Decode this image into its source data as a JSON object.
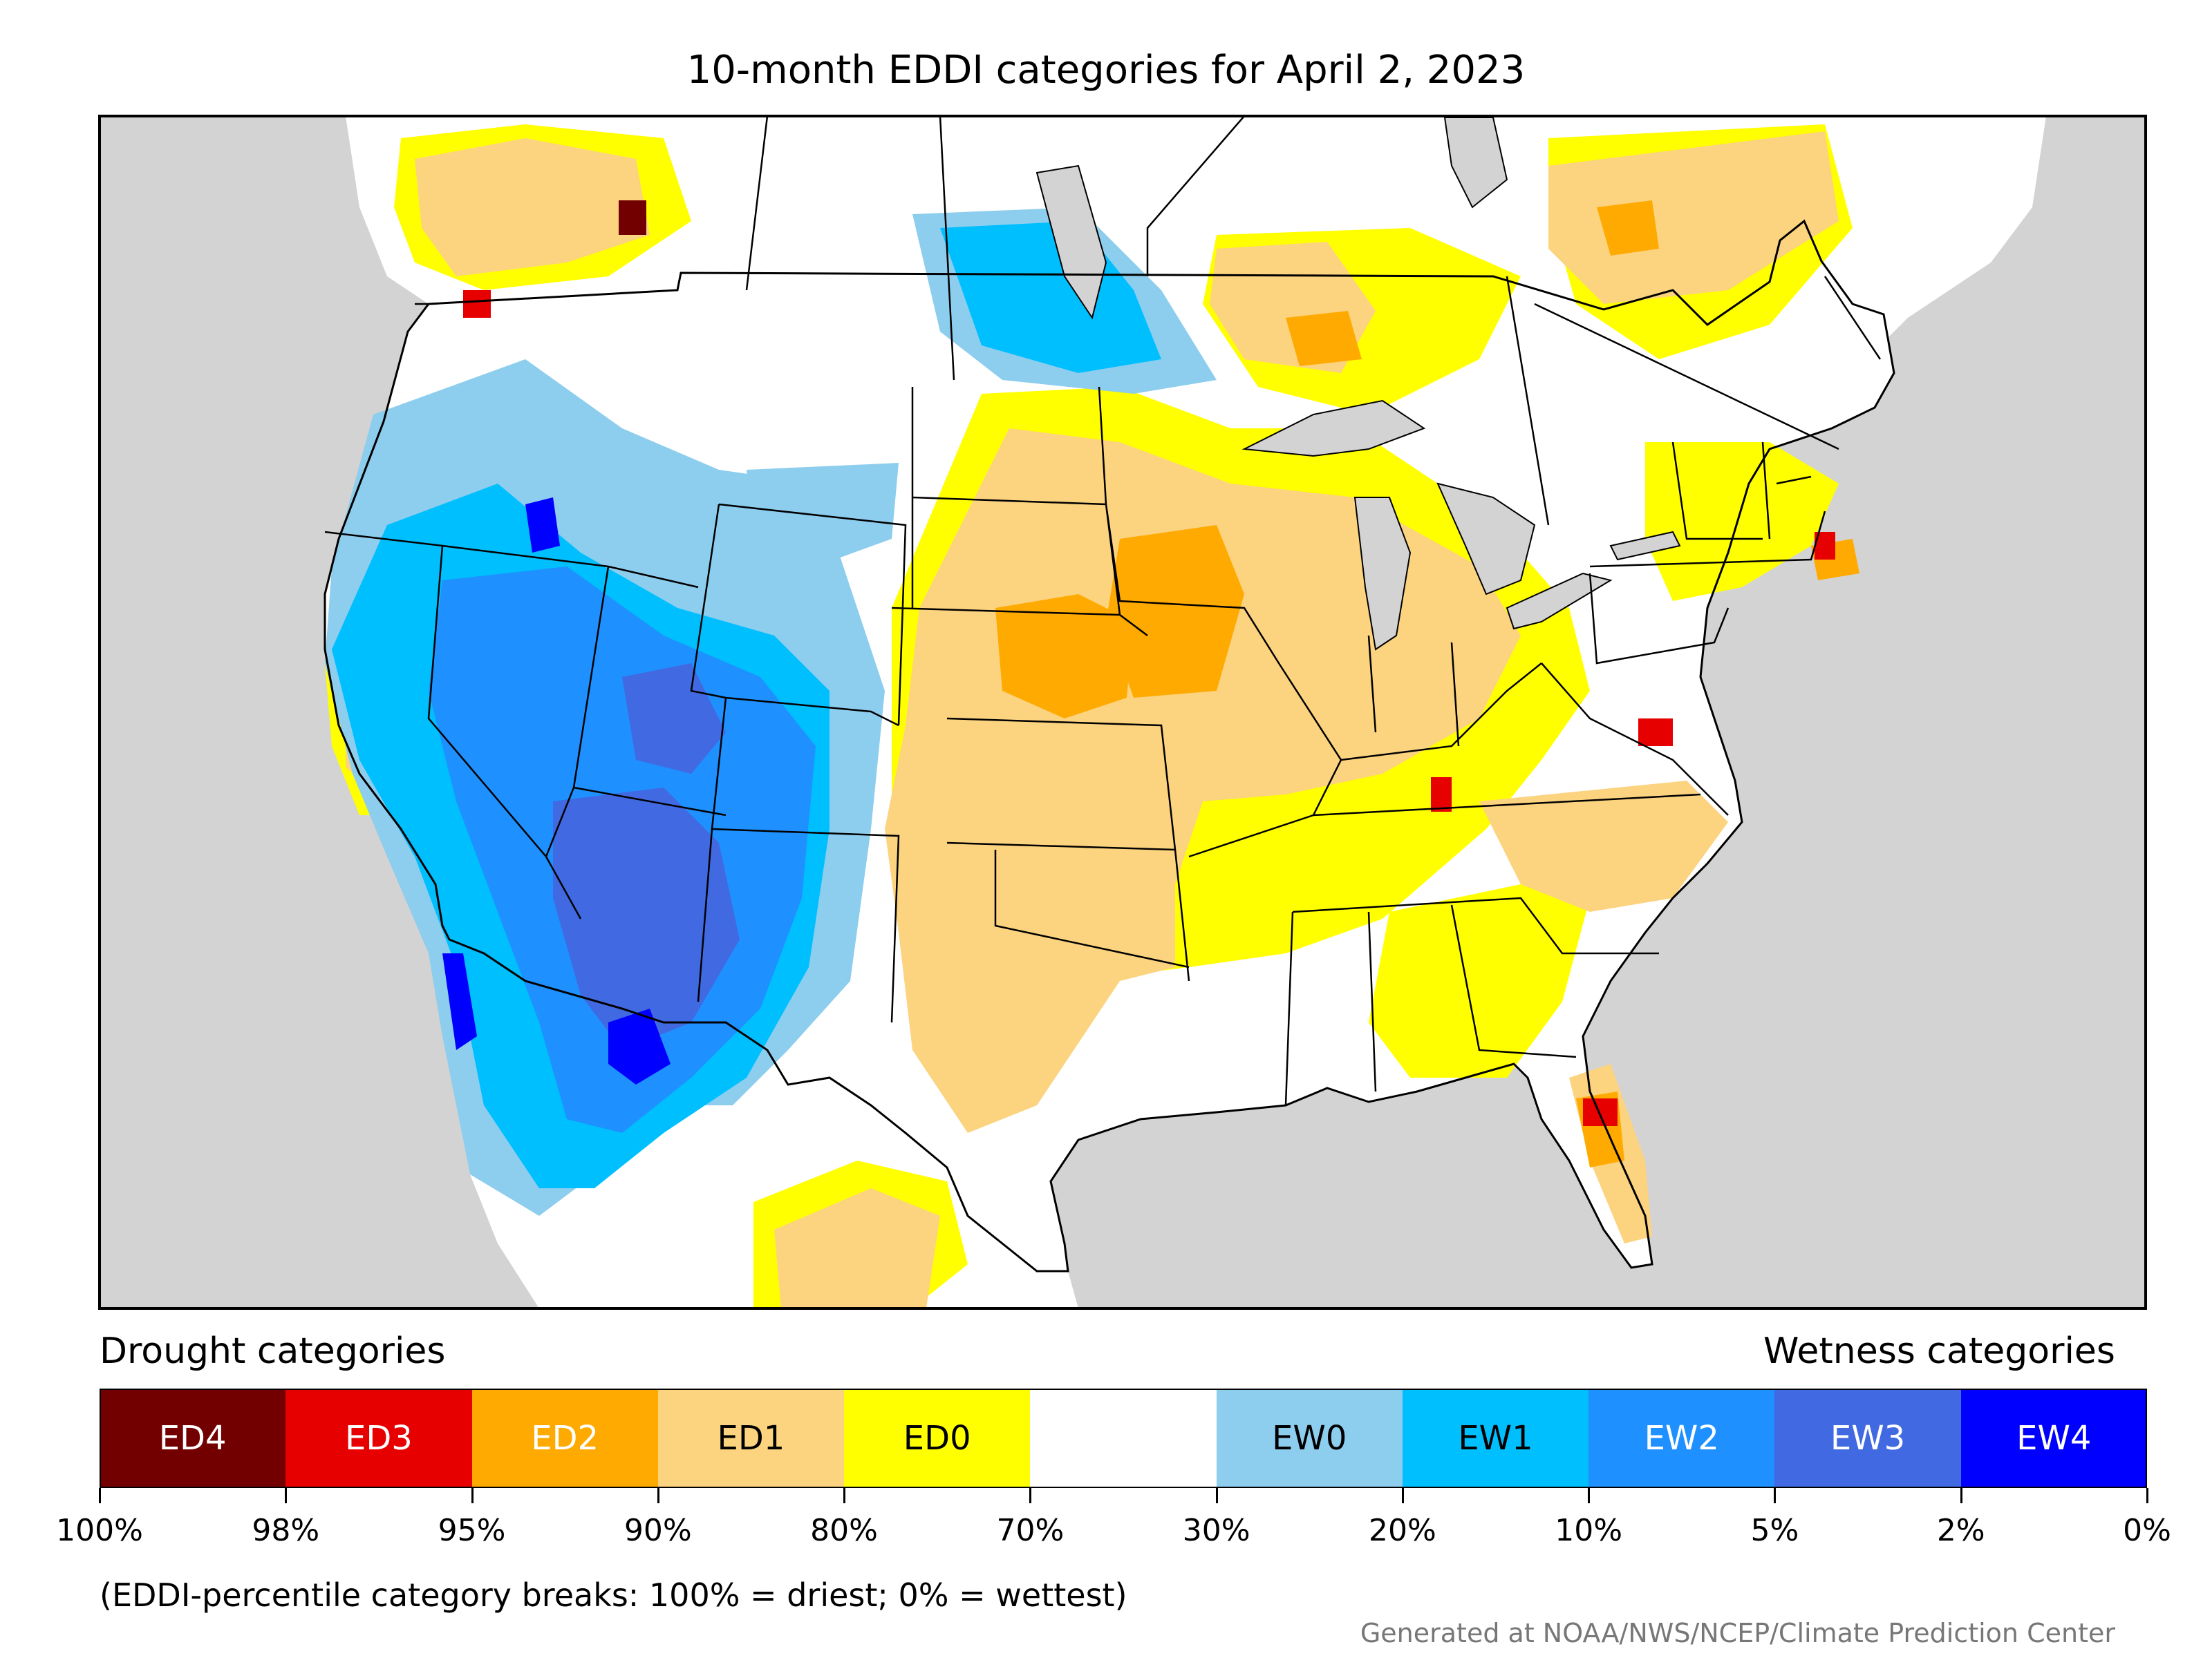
{
  "title": "10-month EDDI categories for April 2, 2023",
  "legend": {
    "drought_heading": "Drought categories",
    "wetness_heading": "Wetness categories",
    "categories": [
      {
        "label": "ED4",
        "color": "#730000",
        "text_color": "#ffffff"
      },
      {
        "label": "ED3",
        "color": "#e60000",
        "text_color": "#ffffff"
      },
      {
        "label": "ED2",
        "color": "#ffaa00",
        "text_color": "#ffffff"
      },
      {
        "label": "ED1",
        "color": "#fcd37f",
        "text_color": "#000000"
      },
      {
        "label": "ED0",
        "color": "#ffff00",
        "text_color": "#000000"
      },
      {
        "label": "",
        "color": "#ffffff",
        "text_color": "#000000"
      },
      {
        "label": "EW0",
        "color": "#8dcdee",
        "text_color": "#000000"
      },
      {
        "label": "EW1",
        "color": "#00bfff",
        "text_color": "#000000"
      },
      {
        "label": "EW2",
        "color": "#1e90ff",
        "text_color": "#ffffff"
      },
      {
        "label": "EW3",
        "color": "#4169e1",
        "text_color": "#ffffff"
      },
      {
        "label": "EW4",
        "color": "#0000ff",
        "text_color": "#ffffff"
      }
    ],
    "breaks": [
      "100%",
      "98%",
      "95%",
      "90%",
      "80%",
      "70%",
      "30%",
      "20%",
      "10%",
      "5%",
      "2%",
      "0%"
    ]
  },
  "note": "(EDDI-percentile category breaks: 100% = driest; 0% = wettest)",
  "credit": "Generated at NOAA/NWS/NCEP/Climate Prediction Center",
  "map": {
    "region": "contiguous United States with surrounding Canada and Mexico",
    "colors": {
      "background_non_us": "#d3d3d3",
      "lakes": "#d3d3d3",
      "land": "#ffffff",
      "boundary": "#000000"
    }
  }
}
